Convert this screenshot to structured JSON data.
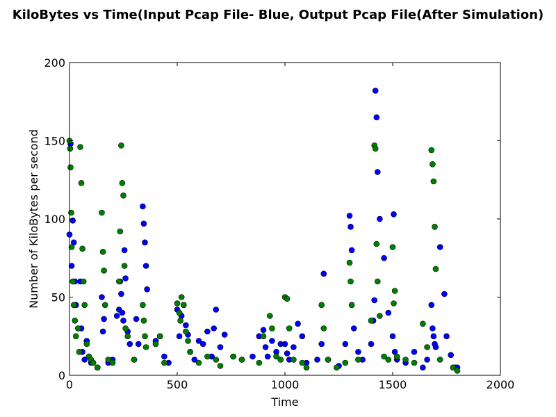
{
  "chart_data": {
    "type": "scatter",
    "title": "KiloBytes vs Time(Input Pcap File- Blue, Output Pcap File(After Simulation)",
    "xlabel": "Time",
    "ylabel": "Number of KiloBytes per second",
    "xlim": [
      0,
      2000
    ],
    "ylim": [
      0,
      200
    ],
    "xticks": [
      0,
      500,
      1000,
      1500,
      2000
    ],
    "yticks": [
      0,
      50,
      100,
      150,
      200
    ],
    "xtick_labels": [
      "0",
      "500",
      "1000",
      "1500",
      "2000"
    ],
    "ytick_labels": [
      "0",
      "50",
      "100",
      "150",
      "200"
    ],
    "grid": false,
    "legend": "none",
    "marker": "circle",
    "series": [
      {
        "color": "#0000ff",
        "x": [
          0,
          5,
          10,
          15,
          20,
          25,
          30,
          40,
          50,
          55,
          60,
          70,
          80,
          90,
          100,
          110,
          130,
          150,
          155,
          160,
          180,
          200,
          220,
          230,
          235,
          240,
          245,
          250,
          255,
          260,
          270,
          280,
          300,
          310,
          320,
          340,
          345,
          350,
          355,
          360,
          400,
          420,
          440,
          460,
          500,
          510,
          520,
          530,
          540,
          550,
          560,
          580,
          600,
          620,
          640,
          660,
          670,
          680,
          700,
          720,
          760,
          800,
          850,
          880,
          900,
          910,
          920,
          940,
          960,
          980,
          1000,
          1010,
          1020,
          1040,
          1060,
          1080,
          1100,
          1150,
          1170,
          1180,
          1200,
          1250,
          1280,
          1300,
          1305,
          1310,
          1320,
          1340,
          1360,
          1400,
          1410,
          1415,
          1420,
          1425,
          1430,
          1440,
          1460,
          1480,
          1500,
          1505,
          1510,
          1520,
          1560,
          1600,
          1640,
          1660,
          1680,
          1685,
          1690,
          1695,
          1700,
          1720,
          1740,
          1750,
          1770,
          1790,
          1800
        ],
        "y": [
          90,
          148,
          70,
          99,
          85,
          60,
          45,
          30,
          60,
          30,
          15,
          10,
          22,
          12,
          8,
          8,
          5,
          50,
          28,
          36,
          8,
          10,
          38,
          42,
          60,
          52,
          40,
          35,
          80,
          62,
          28,
          20,
          10,
          36,
          20,
          108,
          97,
          85,
          70,
          55,
          22,
          25,
          12,
          8,
          42,
          25,
          38,
          45,
          32,
          26,
          15,
          10,
          22,
          20,
          28,
          12,
          30,
          42,
          18,
          26,
          12,
          10,
          12,
          25,
          29,
          18,
          12,
          22,
          15,
          20,
          20,
          14,
          10,
          18,
          33,
          25,
          8,
          10,
          20,
          65,
          10,
          6,
          20,
          102,
          95,
          80,
          30,
          15,
          10,
          20,
          35,
          48,
          182,
          165,
          130,
          100,
          75,
          40,
          25,
          103,
          15,
          10,
          8,
          15,
          5,
          10,
          45,
          30,
          25,
          20,
          18,
          82,
          52,
          25,
          13,
          5,
          5
        ]
      },
      {
        "color": "#008000",
        "x": [
          0,
          3,
          5,
          8,
          10,
          15,
          20,
          25,
          30,
          40,
          45,
          50,
          55,
          60,
          65,
          70,
          80,
          90,
          100,
          110,
          130,
          150,
          155,
          160,
          165,
          180,
          200,
          230,
          235,
          240,
          245,
          250,
          255,
          260,
          270,
          300,
          340,
          345,
          350,
          355,
          400,
          420,
          440,
          500,
          510,
          515,
          520,
          530,
          540,
          550,
          560,
          600,
          640,
          680,
          700,
          760,
          800,
          880,
          900,
          930,
          940,
          960,
          980,
          1000,
          1010,
          1020,
          1040,
          1080,
          1100,
          1170,
          1180,
          1200,
          1240,
          1280,
          1300,
          1305,
          1310,
          1340,
          1400,
          1415,
          1420,
          1425,
          1430,
          1440,
          1460,
          1480,
          1500,
          1505,
          1510,
          1520,
          1560,
          1600,
          1640,
          1660,
          1680,
          1685,
          1690,
          1695,
          1700,
          1720,
          1780,
          1800
        ],
        "y": [
          150,
          145,
          133,
          104,
          82,
          60,
          45,
          35,
          25,
          30,
          15,
          146,
          123,
          81,
          60,
          45,
          20,
          12,
          10,
          8,
          5,
          104,
          79,
          67,
          45,
          10,
          8,
          60,
          92,
          147,
          123,
          115,
          70,
          30,
          25,
          10,
          45,
          35,
          25,
          18,
          20,
          25,
          8,
          46,
          40,
          35,
          50,
          45,
          28,
          22,
          15,
          8,
          12,
          10,
          6,
          12,
          10,
          8,
          25,
          38,
          30,
          12,
          10,
          50,
          49,
          30,
          10,
          8,
          5,
          45,
          30,
          10,
          5,
          8,
          72,
          60,
          45,
          10,
          35,
          147,
          145,
          84,
          60,
          38,
          12,
          10,
          82,
          46,
          54,
          12,
          10,
          8,
          33,
          18,
          144,
          135,
          124,
          95,
          68,
          10,
          5,
          3
        ]
      }
    ]
  }
}
